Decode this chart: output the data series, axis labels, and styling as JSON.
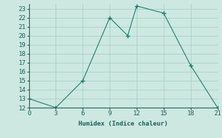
{
  "x": [
    0,
    3,
    6,
    9,
    11,
    12,
    15,
    18,
    21
  ],
  "y": [
    13,
    12,
    15,
    22,
    20,
    23.3,
    22.5,
    16.7,
    12
  ],
  "line_color": "#1a7a6e",
  "marker": "+",
  "marker_size": 5,
  "marker_color": "#1a7a6e",
  "xlabel": "Humidex (Indice chaleur)",
  "xlim": [
    0,
    21
  ],
  "ylim": [
    12,
    23.5
  ],
  "xticks": [
    0,
    3,
    6,
    9,
    12,
    15,
    18,
    21
  ],
  "yticks": [
    12,
    13,
    14,
    15,
    16,
    17,
    18,
    19,
    20,
    21,
    22,
    23
  ],
  "bg_color": "#cce8e0",
  "grid_color": "#a8cfc8",
  "font_color": "#1a5f5a",
  "font_size": 6.5,
  "lw": 0.8
}
